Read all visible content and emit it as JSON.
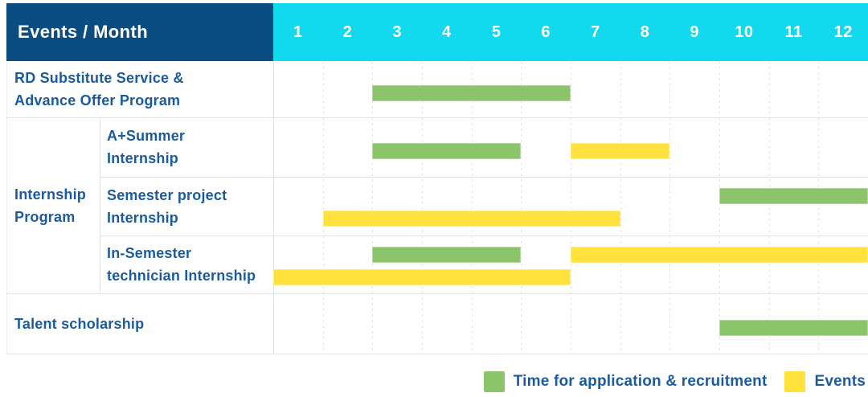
{
  "header": {
    "title": "Events / Month",
    "months": [
      "1",
      "2",
      "3",
      "4",
      "5",
      "6",
      "7",
      "8",
      "9",
      "10",
      "11",
      "12"
    ]
  },
  "row_groups": [
    {
      "label": "Internship Program",
      "label_lines": [
        "Internship",
        "Program"
      ],
      "row_span": [
        1,
        3
      ]
    }
  ],
  "legend": {
    "items": [
      {
        "swatch": "green",
        "label": "Time for application & recruitment"
      },
      {
        "swatch": "yellow",
        "label": "Events"
      }
    ]
  },
  "colors": {
    "navy": "#0b4c81",
    "cyan": "#12d9ed",
    "green": "#8cc46b",
    "yellow": "#ffe23d",
    "label_text": "#1b5b9d",
    "grid_line": "#e2e2e2"
  },
  "chart_data": {
    "type": "bar",
    "subtype": "gantt-schedule",
    "title": "Events / Month",
    "xlabel": "Month",
    "x_ticks": [
      1,
      2,
      3,
      4,
      5,
      6,
      7,
      8,
      9,
      10,
      11,
      12
    ],
    "x_range": [
      1,
      12
    ],
    "grid": true,
    "legend_position": "bottom-right",
    "series_legend": [
      "Time for application & recruitment",
      "Events"
    ],
    "rows": [
      {
        "group": "",
        "label": "RD Substitute Service & Advance Offer Program",
        "label_lines": [
          "RD Substitute Service &",
          "Advance Offer Program"
        ],
        "bars": [
          {
            "series": "Time for application & recruitment",
            "color": "green",
            "start_month": 3,
            "end_month": 6,
            "line": 1
          }
        ]
      },
      {
        "group": "Internship Program",
        "label": "A+Summer Internship",
        "label_lines": [
          "A+Summer",
          "Internship"
        ],
        "bars": [
          {
            "series": "Time for application & recruitment",
            "color": "green",
            "start_month": 3,
            "end_month": 5,
            "line": 1
          },
          {
            "series": "Events",
            "color": "yellow",
            "start_month": 7,
            "end_month": 8,
            "line": 1
          }
        ]
      },
      {
        "group": "Internship Program",
        "label": "Semester project Internship",
        "label_lines": [
          "Semester project",
          "Internship"
        ],
        "bars": [
          {
            "series": "Time for application & recruitment",
            "color": "green",
            "start_month": 10,
            "end_month": 12,
            "line": 1
          },
          {
            "series": "Events",
            "color": "yellow",
            "start_month": 2,
            "end_month": 7,
            "line": 2
          }
        ]
      },
      {
        "group": "Internship Program",
        "label": "In-Semester technician Internship",
        "label_lines": [
          "In-Semester",
          "technician Internship"
        ],
        "bars": [
          {
            "series": "Time for application & recruitment",
            "color": "green",
            "start_month": 3,
            "end_month": 5,
            "line": 1
          },
          {
            "series": "Events",
            "color": "yellow",
            "start_month": 7,
            "end_month": 12,
            "line": 1
          },
          {
            "series": "Events",
            "color": "yellow",
            "start_month": 1,
            "end_month": 6,
            "line": 2
          }
        ]
      },
      {
        "group": "",
        "label": "Talent scholarship",
        "label_lines": [
          "Talent scholarship"
        ],
        "bars": [
          {
            "series": "Time for application & recruitment",
            "color": "green",
            "start_month": 10,
            "end_month": 12,
            "line": 1
          }
        ]
      }
    ]
  }
}
